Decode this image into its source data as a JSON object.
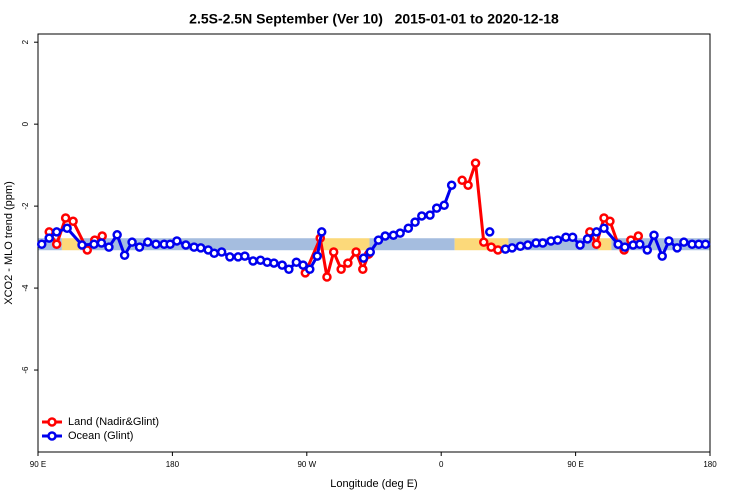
{
  "chart_data": {
    "type": "line",
    "title": "2.5S-2.5N September (Ver 10)   2015-01-01 to 2020-12-18",
    "xlabel": "Longitude (deg E)",
    "ylabel": "XCO2 - MLO trend (ppm)",
    "xlim": [
      90,
      540
    ],
    "ylim": [
      -8,
      2.2
    ],
    "xticks": [
      {
        "value": 90,
        "label": "90 E"
      },
      180,
      {
        "value": 270,
        "label": "90 W"
      },
      {
        "value": 360,
        "label": "0"
      },
      {
        "value": 450,
        "label": "90 E"
      },
      {
        "value": 540,
        "label": "180"
      }
    ],
    "yticks": [
      -6,
      -4,
      -2,
      0,
      2
    ],
    "legend": "bottom-left",
    "mask": {
      "y": -2.93,
      "segments": [
        {
          "xlim": [
            90,
            106
          ],
          "color": "#a5bddf"
        },
        {
          "xlim": [
            106,
            118
          ],
          "color": "#fcd97a"
        },
        {
          "xlim": [
            118,
            279.5
          ],
          "color": "#a5bddf"
        },
        {
          "xlim": [
            279.5,
            312
          ],
          "color": "#fcd97a"
        },
        {
          "xlim": [
            312,
            369
          ],
          "color": "#a5bddf"
        },
        {
          "xlim": [
            369,
            405
          ],
          "color": "#fcd97a"
        },
        {
          "xlim": [
            405,
            465
          ],
          "color": "#a5bddf"
        },
        {
          "xlim": [
            465,
            474
          ],
          "color": "#fcd97a"
        },
        {
          "xlim": [
            474,
            540
          ],
          "color": "#a5bddf"
        }
      ]
    },
    "series": [
      {
        "name": "Land (Nadir&Glint)",
        "color": "#ff0000",
        "x": [
          97.5,
          102.5,
          108.5,
          113.5,
          123,
          128,
          133,
          200,
          269,
          279,
          283.5,
          288,
          293,
          297.5,
          303,
          307.5,
          311.5,
          340,
          374,
          378,
          383,
          388.5,
          393.5,
          398,
          430,
          459.5,
          464,
          469,
          473,
          478.5,
          482.5,
          487,
          492
        ],
        "values": [
          -2.63,
          -2.93,
          -2.29,
          -2.37,
          -3.07,
          -2.83,
          -2.73,
          null,
          -3.63,
          -2.78,
          -3.73,
          -3.12,
          -3.54,
          -3.39,
          -3.12,
          -3.54,
          -3.17,
          null,
          -1.37,
          -1.49,
          -0.95,
          -2.88,
          -3.0,
          -3.07,
          null,
          -2.63,
          -2.93,
          -2.29,
          -2.37,
          -2.93,
          -3.07,
          -2.83,
          -2.73
        ]
      },
      {
        "name": "Ocean (Glint)",
        "color": "#0000ee",
        "x": [
          92.5,
          97.5,
          102.5,
          109.5,
          119.5,
          127.5,
          132.5,
          137.5,
          143,
          148,
          153,
          158,
          163.5,
          169,
          174.5,
          178.5,
          183,
          189,
          194.5,
          199,
          204,
          208,
          213,
          218.5,
          224,
          228.5,
          234,
          239,
          243.5,
          248,
          253.5,
          258,
          263,
          267.5,
          272,
          277,
          280,
          295,
          308,
          312.5,
          318,
          322.5,
          328,
          332.5,
          338,
          342.5,
          347,
          352.5,
          357,
          362,
          367,
          380,
          392.5,
          398,
          403,
          407.5,
          413,
          418,
          423.5,
          428,
          433.5,
          438,
          443.5,
          448,
          453,
          458,
          464,
          469,
          478.5,
          483,
          488.5,
          493,
          498,
          502.5,
          508,
          512.5,
          518,
          522.5,
          528,
          532.5,
          537
        ],
        "values": [
          -2.93,
          -2.78,
          -2.63,
          -2.54,
          -2.95,
          -2.93,
          -2.9,
          -3.0,
          -2.7,
          -3.2,
          -2.88,
          -3.0,
          -2.88,
          -2.93,
          -2.93,
          -2.93,
          -2.85,
          -2.95,
          -3.0,
          -3.02,
          -3.07,
          -3.15,
          -3.12,
          -3.24,
          -3.24,
          -3.22,
          -3.34,
          -3.32,
          -3.37,
          -3.39,
          -3.44,
          -3.54,
          -3.37,
          -3.44,
          -3.54,
          -3.22,
          -2.63,
          null,
          -3.27,
          -3.12,
          -2.83,
          -2.73,
          -2.71,
          -2.66,
          -2.54,
          -2.39,
          -2.24,
          -2.22,
          -2.05,
          -1.98,
          -1.49,
          null,
          -2.63,
          null,
          -3.05,
          -3.02,
          -2.98,
          -2.95,
          -2.9,
          -2.9,
          -2.85,
          -2.83,
          -2.76,
          -2.76,
          -2.95,
          -2.8,
          -2.63,
          -2.54,
          -2.93,
          -3.0,
          -2.95,
          -2.93,
          -3.07,
          -2.71,
          -3.22,
          -2.85,
          -3.02,
          -2.88,
          -2.93,
          -2.93,
          -2.93
        ]
      }
    ]
  }
}
